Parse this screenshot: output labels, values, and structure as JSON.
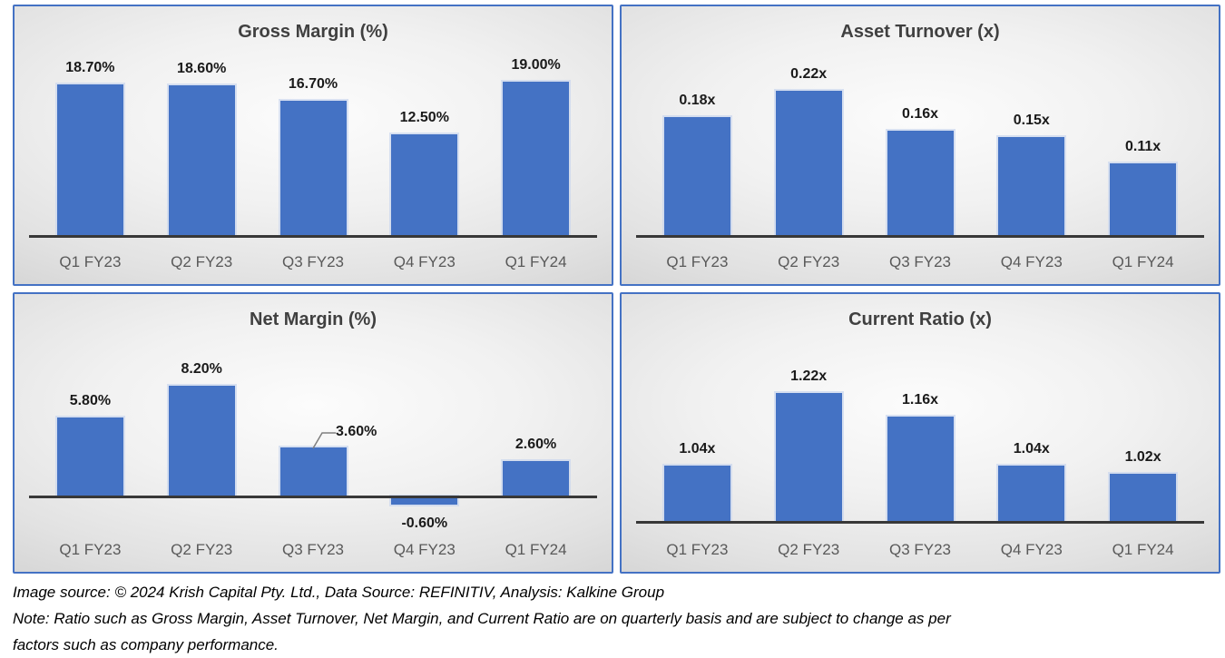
{
  "colors": {
    "bar_fill": "#4472C4",
    "panel_border": "#4472C4",
    "title_text": "#404040",
    "data_label_text": "#1A1A1A",
    "category_text": "#595959",
    "axis_line": "#383838",
    "leader_line": "#7F7F7F"
  },
  "chart_data": [
    {
      "type": "bar",
      "title": "Gross Margin (%)",
      "categories": [
        "Q1 FY23",
        "Q2 FY23",
        "Q3 FY23",
        "Q4 FY23",
        "Q1 FY24"
      ],
      "values": [
        18.7,
        18.6,
        16.7,
        12.5,
        19.0
      ],
      "labels": [
        "18.70%",
        "18.60%",
        "16.70%",
        "12.50%",
        "19.00%"
      ],
      "ylim": [
        0,
        22.4
      ],
      "grid": false,
      "legend": false
    },
    {
      "type": "bar",
      "title": "Asset Turnover (x)",
      "categories": [
        "Q1 FY23",
        "Q2 FY23",
        "Q3 FY23",
        "Q4 FY23",
        "Q1 FY24"
      ],
      "values": [
        0.18,
        0.22,
        0.16,
        0.15,
        0.11
      ],
      "labels": [
        "0.18x",
        "0.22x",
        "0.16x",
        "0.15x",
        "0.11x"
      ],
      "ylim": [
        0,
        0.275
      ],
      "grid": false,
      "legend": false
    },
    {
      "type": "bar",
      "title": "Net Margin (%)",
      "categories": [
        "Q1 FY23",
        "Q2 FY23",
        "Q3 FY23",
        "Q4 FY23",
        "Q1 FY24"
      ],
      "values": [
        5.8,
        8.2,
        3.6,
        -0.6,
        2.6
      ],
      "labels": [
        "5.80%",
        "8.20%",
        "3.60%",
        "-0.60%",
        "2.60%"
      ],
      "ylim": [
        0,
        10.85
      ],
      "label_callout_index": 2,
      "grid": false,
      "legend": false
    },
    {
      "type": "bar",
      "title": "Current Ratio (x)",
      "categories": [
        "Q1 FY23",
        "Q2 FY23",
        "Q3 FY23",
        "Q4 FY23",
        "Q1 FY24"
      ],
      "values": [
        1.04,
        1.22,
        1.16,
        1.04,
        1.02
      ],
      "labels": [
        "1.04x",
        "1.22x",
        "1.16x",
        "1.04x",
        "1.02x"
      ],
      "ylim": [
        0.9,
        1.35
      ],
      "grid": false,
      "legend": false
    }
  ],
  "footer": {
    "source_line": "Image source: © 2024 Krish Capital Pty. Ltd., Data Source: REFINITIV, Analysis: Kalkine Group",
    "note_lines": [
      "Note: Ratio such as Gross Margin, Asset Turnover, Net Margin, and Current Ratio are on quarterly basis and are subject to change as per",
      "factors such as company performance."
    ]
  }
}
